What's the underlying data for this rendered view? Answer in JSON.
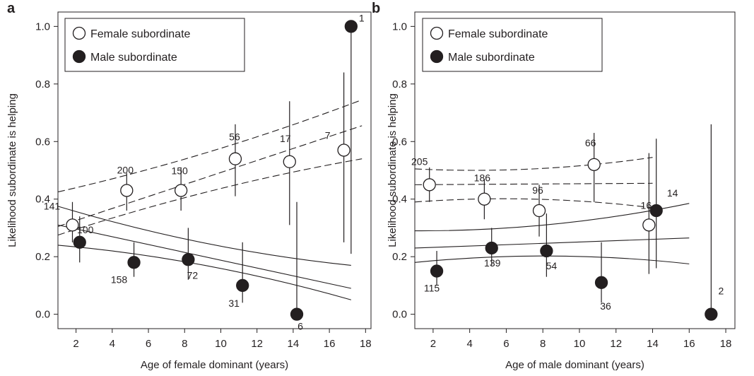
{
  "chart_data": [
    {
      "type": "scatter",
      "panel_label": "a",
      "xlabel": "Age of female dominant (years)",
      "ylabel": "Likelihood subordinate is helping",
      "xlim": [
        1,
        18.3
      ],
      "ylim": [
        -0.05,
        1.05
      ],
      "xticks": [
        2,
        4,
        6,
        8,
        10,
        12,
        14,
        16,
        18
      ],
      "yticks": [
        0.0,
        0.2,
        0.4,
        0.6,
        0.8,
        1.0
      ],
      "ytick_labels": [
        "0.0",
        "0.2",
        "0.4",
        "0.6",
        "0.8",
        "1.0"
      ],
      "legend_position": "top-left",
      "series": [
        {
          "name": "Female subordinate",
          "marker": "open-circle",
          "points": [
            {
              "x": 1.8,
              "y": 0.31,
              "lo": 0.25,
              "hi": 0.39,
              "n": "141"
            },
            {
              "x": 4.8,
              "y": 0.43,
              "lo": 0.36,
              "hi": 0.49,
              "n": "200"
            },
            {
              "x": 7.8,
              "y": 0.43,
              "lo": 0.36,
              "hi": 0.51,
              "n": "150"
            },
            {
              "x": 10.8,
              "y": 0.54,
              "lo": 0.41,
              "hi": 0.66,
              "n": "56"
            },
            {
              "x": 13.8,
              "y": 0.53,
              "lo": 0.31,
              "hi": 0.74,
              "n": "17"
            },
            {
              "x": 16.8,
              "y": 0.57,
              "lo": 0.25,
              "hi": 0.84,
              "n": "7"
            }
          ],
          "fit": {
            "style": "dashed",
            "x": [
              1,
              17.8
            ],
            "mean": [
              0.305,
              0.655
            ],
            "lower": [
              0.275,
              0.54
            ],
            "upper": [
              0.425,
              0.745
            ]
          }
        },
        {
          "name": "Male subordinate",
          "marker": "filled-circle",
          "points": [
            {
              "x": 2.2,
              "y": 0.25,
              "lo": 0.18,
              "hi": 0.34,
              "n": "100"
            },
            {
              "x": 5.2,
              "y": 0.18,
              "lo": 0.13,
              "hi": 0.25,
              "n": "158"
            },
            {
              "x": 8.2,
              "y": 0.19,
              "lo": 0.12,
              "hi": 0.3,
              "n": "72"
            },
            {
              "x": 11.2,
              "y": 0.1,
              "lo": 0.04,
              "hi": 0.25,
              "n": "31"
            },
            {
              "x": 14.2,
              "y": 0.0,
              "lo": 0.0,
              "hi": 0.39,
              "n": "6"
            },
            {
              "x": 17.2,
              "y": 1.0,
              "lo": 0.21,
              "hi": 1.0,
              "n": "1"
            }
          ],
          "fit": {
            "style": "solid",
            "x": [
              1,
              17.2
            ],
            "mean": [
              0.31,
              0.09
            ],
            "lower": [
              0.24,
              0.05
            ],
            "upper": [
              0.375,
              0.17
            ]
          }
        }
      ]
    },
    {
      "type": "scatter",
      "panel_label": "b",
      "xlabel": "Age of male dominant (years)",
      "ylabel": "Likelihood subordinate is helping",
      "xlim": [
        1,
        18.5
      ],
      "ylim": [
        -0.05,
        1.05
      ],
      "xticks": [
        2,
        4,
        6,
        8,
        10,
        12,
        14,
        16,
        18
      ],
      "yticks": [
        0.0,
        0.2,
        0.4,
        0.6,
        0.8,
        1.0
      ],
      "ytick_labels": [
        "0.0",
        "0.2",
        "0.4",
        "0.6",
        "0.8",
        "1.0"
      ],
      "legend_position": "top-left",
      "series": [
        {
          "name": "Female subordinate",
          "marker": "open-circle",
          "points": [
            {
              "x": 1.8,
              "y": 0.45,
              "lo": 0.39,
              "hi": 0.51,
              "n": "205"
            },
            {
              "x": 4.8,
              "y": 0.4,
              "lo": 0.33,
              "hi": 0.47,
              "n": "186"
            },
            {
              "x": 7.8,
              "y": 0.36,
              "lo": 0.27,
              "hi": 0.45,
              "n": "96"
            },
            {
              "x": 10.8,
              "y": 0.52,
              "lo": 0.39,
              "hi": 0.63,
              "n": "66"
            },
            {
              "x": 13.8,
              "y": 0.31,
              "lo": 0.14,
              "hi": 0.56,
              "n": "16"
            }
          ],
          "fit": {
            "style": "dashed",
            "x": [
              1,
              14
            ],
            "mean": [
              0.45,
              0.455
            ],
            "lower": [
              0.39,
              0.37
            ],
            "upper": [
              0.505,
              0.545
            ]
          }
        },
        {
          "name": "Male subordinate",
          "marker": "filled-circle",
          "points": [
            {
              "x": 2.2,
              "y": 0.15,
              "lo": 0.1,
              "hi": 0.22,
              "n": "115"
            },
            {
              "x": 5.2,
              "y": 0.23,
              "lo": 0.17,
              "hi": 0.3,
              "n": "139"
            },
            {
              "x": 8.2,
              "y": 0.22,
              "lo": 0.13,
              "hi": 0.35,
              "n": "54"
            },
            {
              "x": 11.2,
              "y": 0.11,
              "lo": 0.04,
              "hi": 0.25,
              "n": "36"
            },
            {
              "x": 14.2,
              "y": 0.36,
              "lo": 0.16,
              "hi": 0.61,
              "n": "14"
            },
            {
              "x": 17.2,
              "y": 0.0,
              "lo": 0.0,
              "hi": 0.66,
              "n": "2"
            }
          ],
          "fit": {
            "style": "solid",
            "x": [
              1,
              16
            ],
            "mean": [
              0.23,
              0.265
            ],
            "lower": [
              0.18,
              0.175
            ],
            "upper": [
              0.29,
              0.385
            ]
          }
        }
      ]
    }
  ]
}
